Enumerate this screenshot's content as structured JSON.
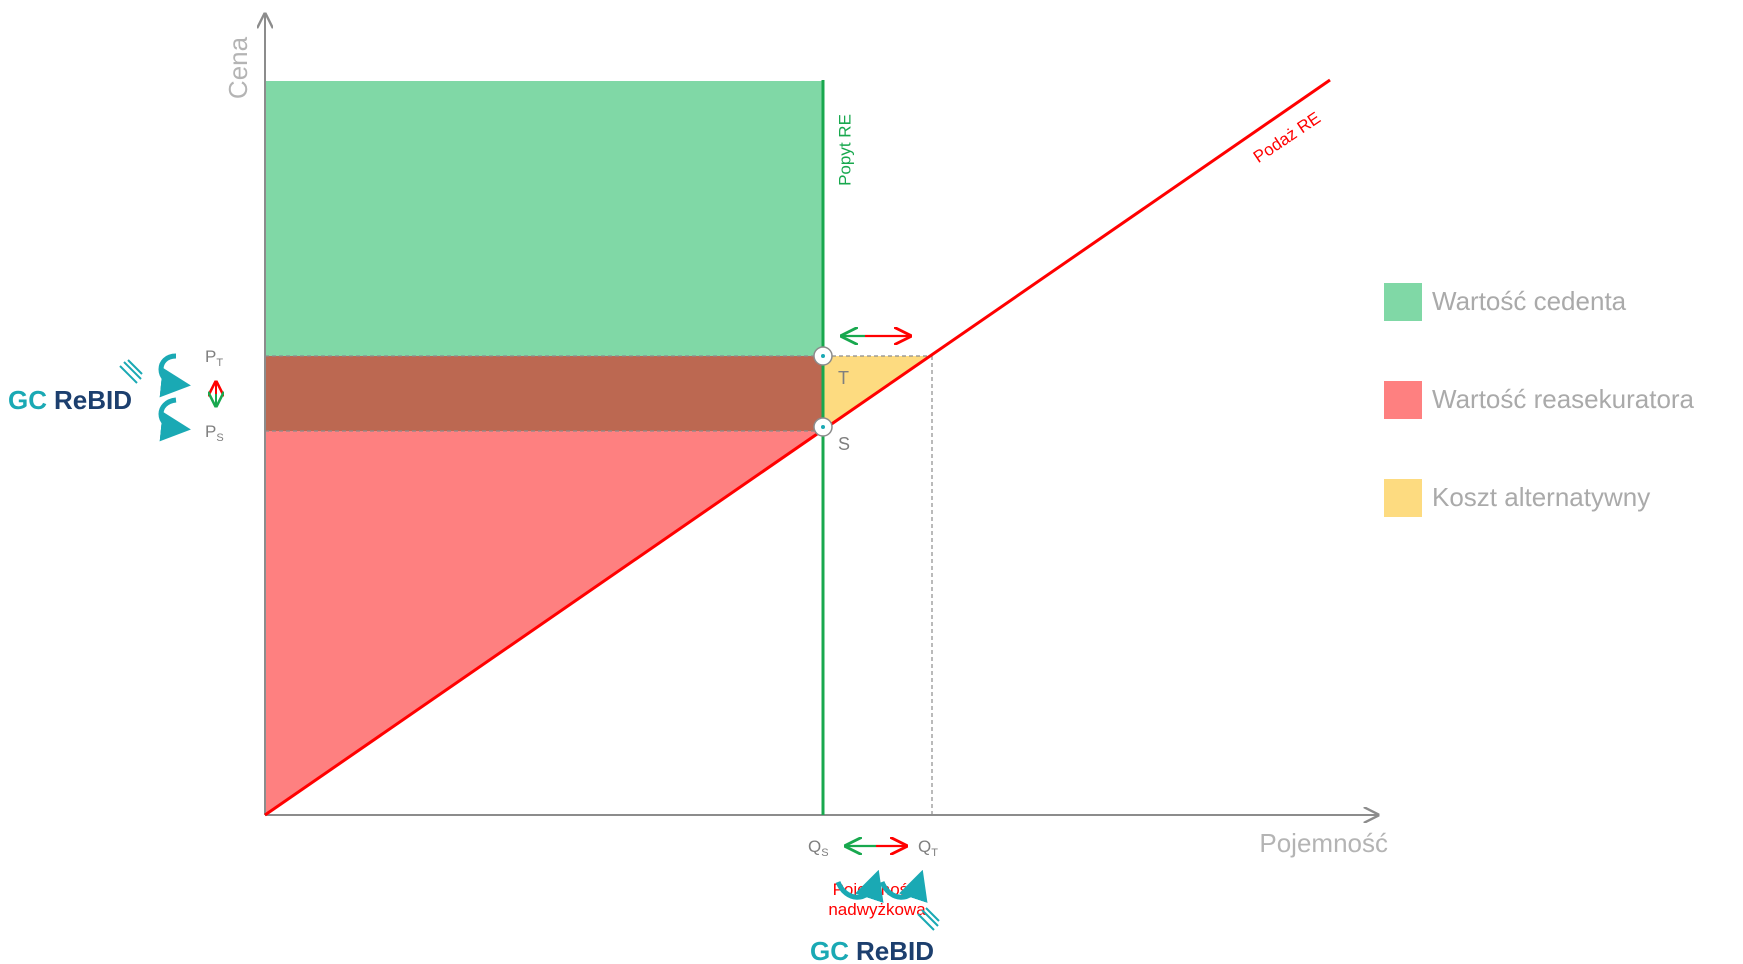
{
  "axes": {
    "y_label": "Cena",
    "x_label": "Pojemność"
  },
  "curves": {
    "demand_label": "Popyt RE",
    "supply_label": "Podaż RE"
  },
  "points": {
    "t_label": "T",
    "s_label": "S"
  },
  "price_ticks": {
    "pt_main": "P",
    "pt_sub": "T",
    "ps_main": "P",
    "ps_sub": "S"
  },
  "quantity_ticks": {
    "qs_main": "Q",
    "qs_sub": "S",
    "qt_main": "Q",
    "qt_sub": "T"
  },
  "excess_capacity_label": [
    "Pojemność",
    "nadwyżkowa"
  ],
  "logos": {
    "left": {
      "gc": "GC",
      "rebid": "ReBID"
    },
    "bottom": {
      "gc": "GC",
      "rebid": "ReBID"
    }
  },
  "legend": [
    {
      "label": "Wartość cedenta",
      "color": "#80d8a6"
    },
    {
      "label": "Wartość reasekuratora",
      "color": "#fe8080"
    },
    {
      "label": "Koszt alternatywny",
      "color": "#fddb80"
    }
  ],
  "colors": {
    "cedent_value": "#80d8a6",
    "reinsurer_value": "#fe8080",
    "overlap": "#bc6851",
    "opportunity_cost": "#fddb80",
    "demand_line": "#18a84e",
    "supply_line": "#ff0000",
    "axis": "#8c8c8c",
    "logo_teal": "#1aa9b4",
    "logo_navy": "#1c3f6e"
  }
}
